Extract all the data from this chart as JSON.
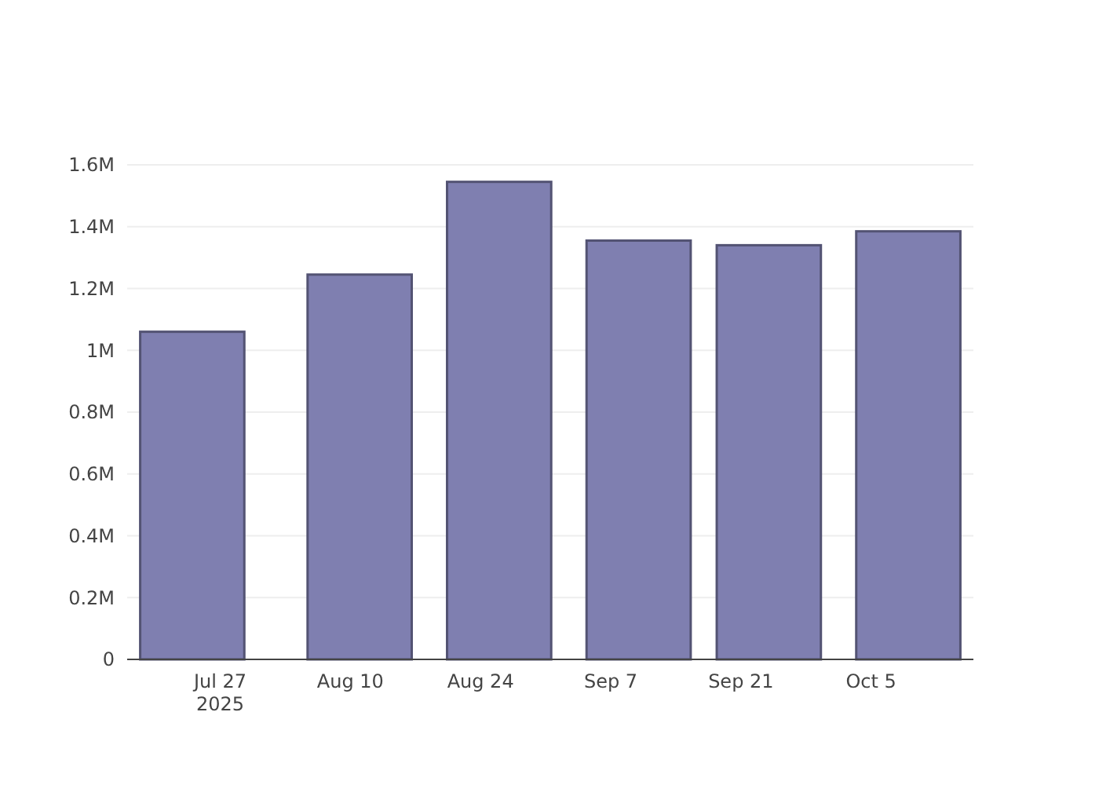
{
  "chart_data": {
    "type": "bar",
    "x": [
      "2025-07-24",
      "2025-08-11",
      "2025-08-26",
      "2025-09-10",
      "2025-09-24",
      "2025-10-09"
    ],
    "values": [
      1060000,
      1245000,
      1545000,
      1355000,
      1340000,
      1385000
    ],
    "color": "#7f7fb0",
    "xlim": [
      "2025-07-17",
      "2025-10-16"
    ],
    "xticks": [
      {
        "value": "2025-07-27",
        "label": "Jul 27\n2025"
      },
      {
        "value": "2025-08-10",
        "label": "Aug 10"
      },
      {
        "value": "2025-08-24",
        "label": "Aug 24"
      },
      {
        "value": "2025-09-07",
        "label": "Sep 7"
      },
      {
        "value": "2025-09-21",
        "label": "Sep 21"
      },
      {
        "value": "2025-10-05",
        "label": "Oct 5"
      }
    ],
    "ylim": [
      0,
      1600000
    ],
    "yticks": [
      {
        "value": 0,
        "label": "0"
      },
      {
        "value": 200000,
        "label": "0.2M"
      },
      {
        "value": 400000,
        "label": "0.4M"
      },
      {
        "value": 600000,
        "label": "0.6M"
      },
      {
        "value": 800000,
        "label": "0.8M"
      },
      {
        "value": 1000000,
        "label": "1M"
      },
      {
        "value": 1200000,
        "label": "1.2M"
      },
      {
        "value": 1400000,
        "label": "1.4M"
      },
      {
        "value": 1600000,
        "label": "1.6M"
      }
    ],
    "grid": "y"
  }
}
